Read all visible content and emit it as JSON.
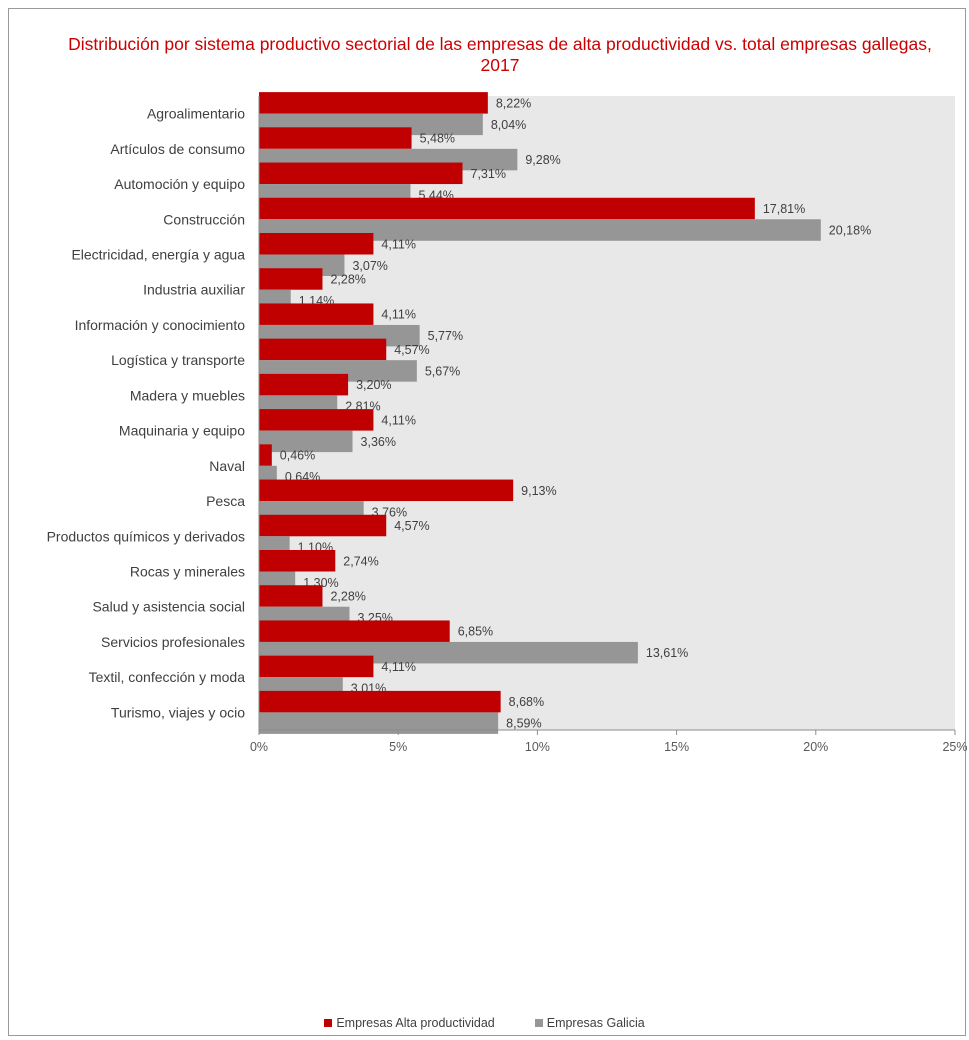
{
  "chart_data": {
    "type": "bar",
    "orientation": "horizontal",
    "title": "Distribución por sistema productivo sectorial de las empresas de alta productividad vs. total empresas gallegas, 2017",
    "categories": [
      "Agroalimentario",
      "Artículos de consumo",
      "Automoción y equipo",
      "Construcción",
      "Electricidad, energía y agua",
      "Industria auxiliar",
      "Información y conocimiento",
      "Logística y transporte",
      "Madera y muebles",
      "Maquinaria y equipo",
      "Naval",
      "Pesca",
      "Productos químicos y derivados",
      "Rocas y minerales",
      "Salud y asistencia social",
      "Servicios profesionales",
      "Textil, confección y moda",
      "Turismo, viajes y ocio"
    ],
    "series": [
      {
        "name": "Empresas Alta productividad",
        "color": "#c00000",
        "values": [
          8.22,
          5.48,
          7.31,
          17.81,
          4.11,
          2.28,
          4.11,
          4.57,
          3.2,
          4.11,
          0.46,
          9.13,
          4.57,
          2.74,
          2.28,
          6.85,
          4.11,
          8.68
        ],
        "labels": [
          "8,22%",
          "5,48%",
          "7,31%",
          "17,81%",
          "4,11%",
          "2,28%",
          "4,11%",
          "4,57%",
          "3,20%",
          "4,11%",
          "0,46%",
          "9,13%",
          "4,57%",
          "2,74%",
          "2,28%",
          "6,85%",
          "4,11%",
          "8,68%"
        ]
      },
      {
        "name": "Empresas Galicia",
        "color": "#969696",
        "values": [
          8.04,
          9.28,
          5.44,
          20.18,
          3.07,
          1.14,
          5.77,
          5.67,
          2.81,
          3.36,
          0.64,
          3.76,
          1.1,
          1.3,
          3.25,
          13.61,
          3.01,
          8.59
        ],
        "labels": [
          "8,04%",
          "9,28%",
          "5,44%",
          "20,18%",
          "3,07%",
          "1,14%",
          "5,77%",
          "5,67%",
          "2,81%",
          "3,36%",
          "0,64%",
          "3,76%",
          "1,10%",
          "1,30%",
          "3,25%",
          "13,61%",
          "3,01%",
          "8,59%"
        ]
      }
    ],
    "xlim": [
      0,
      25
    ],
    "xticks": [
      0,
      5,
      10,
      15,
      20,
      25
    ],
    "xtick_labels": [
      "0%",
      "5%",
      "10%",
      "15%",
      "20%",
      "25%"
    ],
    "plot_background": "#e8e8e8",
    "grid": false,
    "legend_position": "bottom"
  }
}
